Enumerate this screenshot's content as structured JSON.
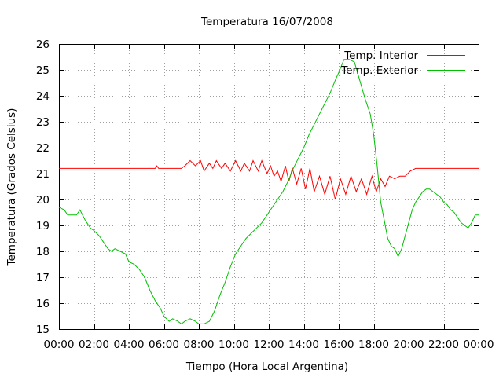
{
  "chart_data": {
    "type": "line",
    "title": "Temperatura 16/07/2008",
    "xlabel": "Tiempo (Hora Local Argentina)",
    "ylabel": "Temperatura (Grados Celsius)",
    "xlim": [
      0,
      24
    ],
    "ylim": [
      15,
      26
    ],
    "xticks": [
      0,
      2,
      4,
      6,
      8,
      10,
      12,
      14,
      16,
      18,
      20,
      22,
      24
    ],
    "xtick_labels": [
      "00:00",
      "02:00",
      "04:00",
      "06:00",
      "08:00",
      "10:00",
      "12:00",
      "14:00",
      "16:00",
      "18:00",
      "20:00",
      "22:00",
      "00:00"
    ],
    "yticks": [
      15,
      16,
      17,
      18,
      19,
      20,
      21,
      22,
      23,
      24,
      25,
      26
    ],
    "ytick_labels": [
      "15",
      "16",
      "17",
      "18",
      "19",
      "20",
      "21",
      "22",
      "23",
      "24",
      "25",
      "26"
    ],
    "grid": true,
    "legend_position": "top-right",
    "series": [
      {
        "name": "Temp. Interior",
        "color": "#ff0000",
        "x": [
          0,
          5.5,
          5.6,
          5.7,
          5.8,
          6.0,
          7.0,
          7.2,
          7.5,
          7.8,
          8.1,
          8.3,
          8.6,
          8.8,
          9.0,
          9.3,
          9.5,
          9.8,
          10.1,
          10.4,
          10.6,
          10.9,
          11.1,
          11.4,
          11.6,
          11.9,
          12.1,
          12.3,
          12.5,
          12.7,
          12.95,
          13.15,
          13.35,
          13.6,
          13.85,
          14.1,
          14.35,
          14.6,
          14.9,
          15.2,
          15.5,
          15.8,
          16.1,
          16.4,
          16.7,
          17.0,
          17.3,
          17.6,
          17.9,
          18.15,
          18.4,
          18.65,
          18.9,
          19.2,
          19.5,
          19.8,
          20.1,
          20.4,
          24
        ],
        "y": [
          21.2,
          21.2,
          21.3,
          21.2,
          21.2,
          21.2,
          21.2,
          21.3,
          21.5,
          21.3,
          21.5,
          21.1,
          21.4,
          21.2,
          21.5,
          21.2,
          21.4,
          21.1,
          21.5,
          21.1,
          21.4,
          21.1,
          21.5,
          21.1,
          21.5,
          21.0,
          21.3,
          20.9,
          21.1,
          20.7,
          21.3,
          20.7,
          21.2,
          20.6,
          21.2,
          20.4,
          21.2,
          20.3,
          20.9,
          20.2,
          20.9,
          20.0,
          20.8,
          20.2,
          20.9,
          20.3,
          20.8,
          20.2,
          20.9,
          20.3,
          20.8,
          20.5,
          20.9,
          20.8,
          20.9,
          20.9,
          21.1,
          21.2,
          21.2
        ]
      },
      {
        "name": "Temp. Exterior",
        "color": "#00c000",
        "x": [
          0,
          0.3,
          0.5,
          0.8,
          1.0,
          1.2,
          1.5,
          1.8,
          2.0,
          2.3,
          2.5,
          2.8,
          3.0,
          3.2,
          3.5,
          3.8,
          4.0,
          4.3,
          4.6,
          4.9,
          5.2,
          5.5,
          5.8,
          6.0,
          6.3,
          6.5,
          6.8,
          7.0,
          7.2,
          7.5,
          7.8,
          8.0,
          8.3,
          8.6,
          8.9,
          9.2,
          9.5,
          9.8,
          10.1,
          10.4,
          10.7,
          11.0,
          11.3,
          11.6,
          11.9,
          12.2,
          12.5,
          12.8,
          13.1,
          13.4,
          13.7,
          14.0,
          14.3,
          14.6,
          14.9,
          15.2,
          15.5,
          15.8,
          16.0,
          16.3,
          16.6,
          16.9,
          17.2,
          17.5,
          17.8,
          18.0,
          18.2,
          18.4,
          18.6,
          18.8,
          19.0,
          19.2,
          19.4,
          19.6,
          19.8,
          20.0,
          20.2,
          20.4,
          20.6,
          20.8,
          21.0,
          21.2,
          21.4,
          21.6,
          21.8,
          22.0,
          22.2,
          22.4,
          22.6,
          22.8,
          23.0,
          23.2,
          23.4,
          23.6,
          23.8,
          24.0
        ],
        "y": [
          19.7,
          19.6,
          19.4,
          19.4,
          19.4,
          19.6,
          19.2,
          18.9,
          18.8,
          18.6,
          18.4,
          18.1,
          18.0,
          18.1,
          18.0,
          17.9,
          17.6,
          17.5,
          17.3,
          17.0,
          16.5,
          16.1,
          15.8,
          15.5,
          15.3,
          15.4,
          15.3,
          15.2,
          15.3,
          15.4,
          15.3,
          15.2,
          15.2,
          15.3,
          15.7,
          16.3,
          16.8,
          17.4,
          17.9,
          18.2,
          18.5,
          18.7,
          18.9,
          19.1,
          19.4,
          19.7,
          20.0,
          20.3,
          20.7,
          21.2,
          21.6,
          22.0,
          22.5,
          22.9,
          23.3,
          23.7,
          24.1,
          24.6,
          24.9,
          25.4,
          25.4,
          25.3,
          24.6,
          23.9,
          23.3,
          22.5,
          21.3,
          19.9,
          19.2,
          18.5,
          18.2,
          18.1,
          17.8,
          18.1,
          18.6,
          19.1,
          19.6,
          19.9,
          20.1,
          20.3,
          20.4,
          20.4,
          20.3,
          20.2,
          20.1,
          19.9,
          19.8,
          19.6,
          19.5,
          19.3,
          19.1,
          19.0,
          18.9,
          19.1,
          19.4,
          19.4
        ]
      }
    ]
  }
}
